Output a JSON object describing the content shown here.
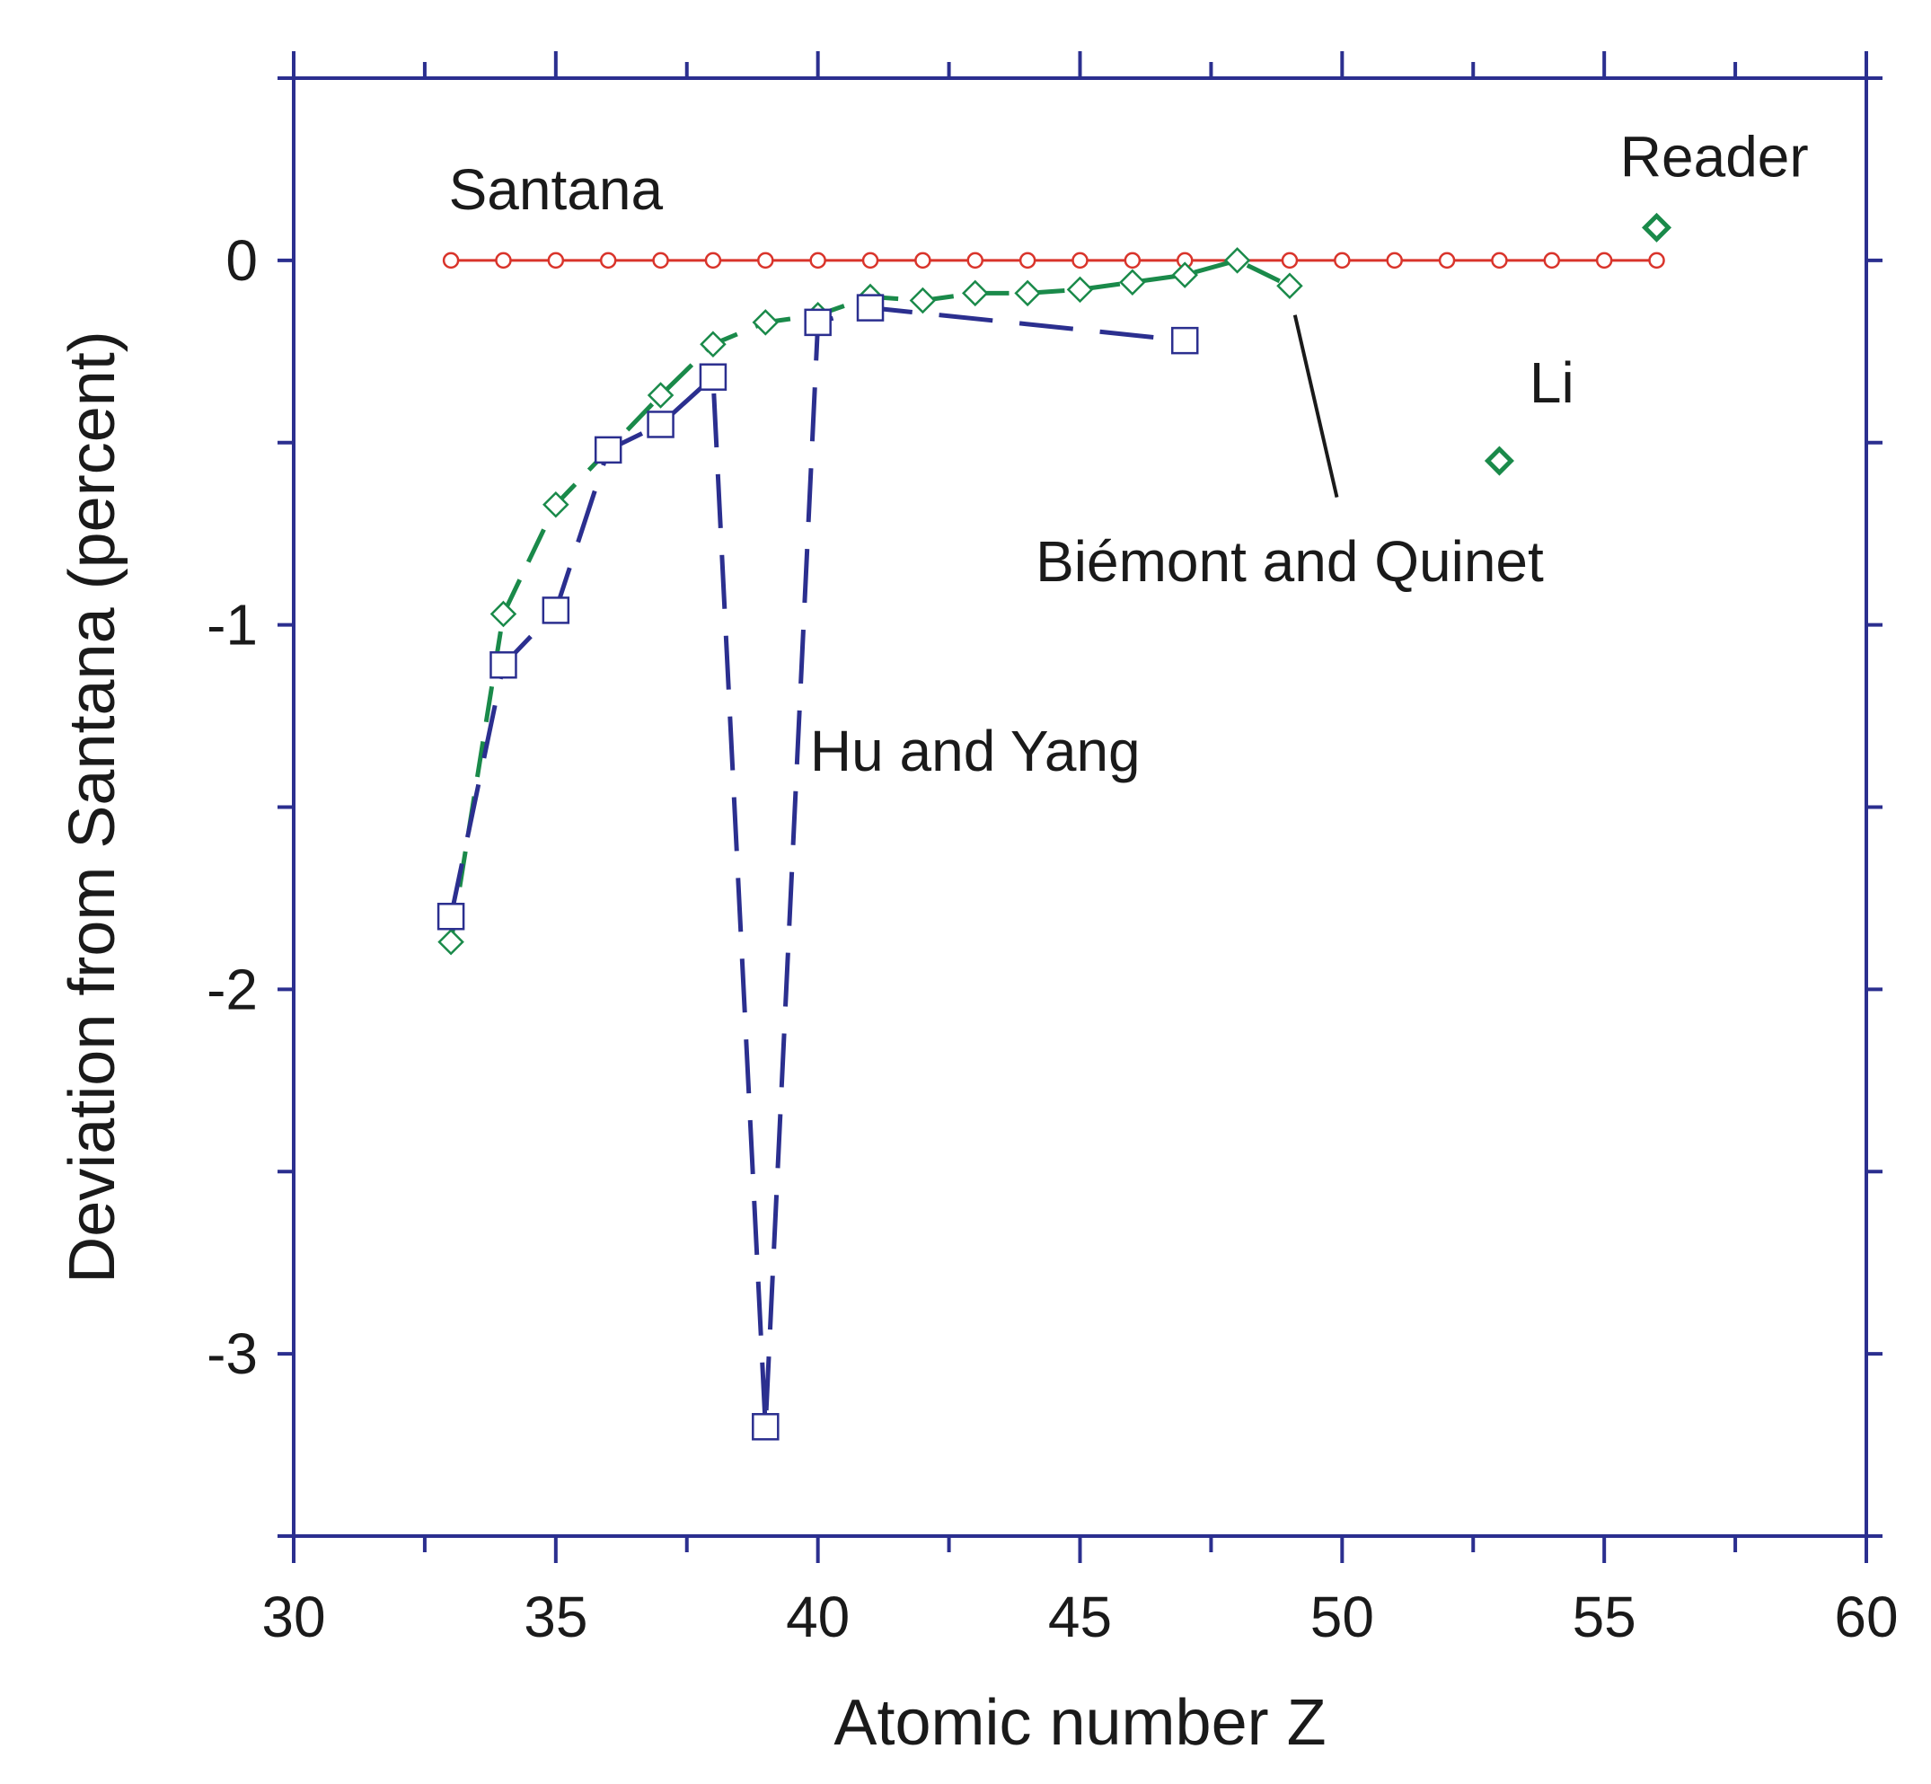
{
  "chart_data": {
    "type": "line",
    "title": "",
    "xlabel": "Atomic number Z",
    "ylabel": "Deviation from Santana (percent)",
    "xlim": [
      30,
      60
    ],
    "ylim": [
      -3.5,
      0.5
    ],
    "xticks": [
      30,
      35,
      40,
      45,
      50,
      55,
      60
    ],
    "yticks": [
      -3,
      -2,
      -1,
      0
    ],
    "grid": false,
    "colors": {
      "axis": "#2b2f8f",
      "santana": "#d9342b",
      "biemont": "#1a8a4a",
      "hu_yang": "#2b2f8f"
    },
    "series": [
      {
        "name": "Santana",
        "marker": "circle",
        "line": "solid",
        "x": [
          33,
          34,
          35,
          36,
          37,
          38,
          39,
          40,
          41,
          42,
          43,
          44,
          45,
          46,
          47,
          48,
          49,
          50,
          51,
          52,
          53,
          54,
          55,
          56
        ],
        "y": [
          0,
          0,
          0,
          0,
          0,
          0,
          0,
          0,
          0,
          0,
          0,
          0,
          0,
          0,
          0,
          0,
          0,
          0,
          0,
          0,
          0,
          0,
          0,
          0
        ]
      },
      {
        "name": "Biémont and Quinet",
        "marker": "diamond",
        "line": "dashed",
        "x": [
          33,
          34,
          35,
          36,
          37,
          38,
          39,
          40,
          41,
          42,
          43,
          44,
          45,
          46,
          47,
          48,
          49
        ],
        "y": [
          -1.87,
          -0.97,
          -0.67,
          -0.52,
          -0.37,
          -0.23,
          -0.17,
          -0.15,
          -0.1,
          -0.11,
          -0.09,
          -0.09,
          -0.08,
          -0.06,
          -0.04,
          0.0,
          -0.07
        ]
      },
      {
        "name": "Hu and Yang",
        "marker": "square",
        "line": "dashed",
        "x": [
          33,
          34,
          35,
          36,
          37,
          38,
          39,
          40,
          41,
          47
        ],
        "y": [
          -1.8,
          -1.11,
          -0.96,
          -0.52,
          -0.45,
          -0.32,
          -3.2,
          -0.17,
          -0.13,
          -0.22
        ]
      },
      {
        "name": "Li",
        "marker": "diamond",
        "line": "none",
        "x": [
          53
        ],
        "y": [
          -0.55
        ]
      },
      {
        "name": "Reader",
        "marker": "diamond",
        "line": "none",
        "x": [
          56
        ],
        "y": [
          0.09
        ]
      }
    ],
    "annotations": [
      {
        "name": "santana-label",
        "text": "Santana",
        "x": 35.0,
        "y": 0.14
      },
      {
        "name": "reader-label",
        "text": "Reader",
        "x": 57.1,
        "y": 0.23
      },
      {
        "name": "li-label",
        "text": "Li",
        "x": 54.0,
        "y": -0.39
      },
      {
        "name": "biemont-label",
        "text": "Biémont and Quinet",
        "x": 49.0,
        "y": -0.88
      },
      {
        "name": "hu-yang-label",
        "text": "Hu and Yang",
        "x": 43.0,
        "y": -1.4
      }
    ],
    "leader_line": {
      "x1": 49.1,
      "y1": -0.15,
      "x2": 49.9,
      "y2": -0.65
    }
  }
}
